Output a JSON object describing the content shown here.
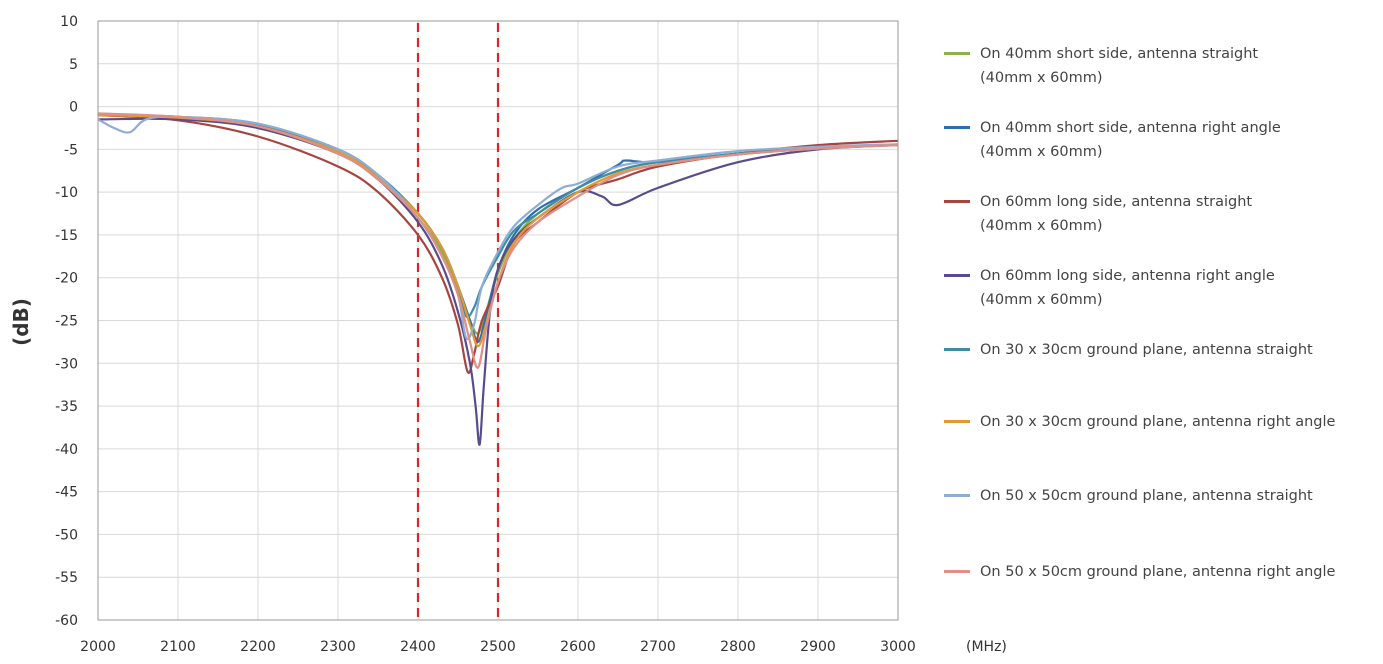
{
  "chart_data": {
    "type": "line",
    "xlabel": "(MHz)",
    "ylabel": "(dB)",
    "xlim": [
      2000,
      3000
    ],
    "ylim": [
      -60,
      10
    ],
    "xticks": [
      2000,
      2100,
      2200,
      2300,
      2400,
      2500,
      2600,
      2700,
      2800,
      2900,
      3000
    ],
    "yticks": [
      10,
      5,
      0,
      -5,
      -10,
      -15,
      -20,
      -25,
      -30,
      -35,
      -40,
      -45,
      -50,
      -55,
      -60
    ],
    "grid": true,
    "legend_position": "right",
    "reference_lines": [
      {
        "x": 2400,
        "color": "#d62728",
        "style": "dashed"
      },
      {
        "x": 2500,
        "color": "#d62728",
        "style": "dashed"
      }
    ],
    "series": [
      {
        "name": "On 40mm short side, antenna straight",
        "name_line2": "(40mm x 60mm)",
        "color": "#8db04a",
        "x": [
          2000,
          2100,
          2200,
          2300,
          2350,
          2400,
          2430,
          2450,
          2465,
          2475,
          2485,
          2500,
          2520,
          2550,
          2600,
          2650,
          2700,
          2800,
          2900,
          3000
        ],
        "y": [
          -1.0,
          -1.3,
          -2.5,
          -5.5,
          -8.5,
          -13.0,
          -17.0,
          -21.5,
          -25.0,
          -26.5,
          -24.0,
          -19.5,
          -15.5,
          -12.5,
          -9.5,
          -7.5,
          -6.5,
          -5.5,
          -4.8,
          -4.5
        ]
      },
      {
        "name": "On 40mm short side, antenna right angle",
        "name_line2": "(40mm x 60mm)",
        "color": "#2e6fb0",
        "x": [
          2000,
          2100,
          2200,
          2300,
          2350,
          2400,
          2430,
          2450,
          2465,
          2475,
          2485,
          2500,
          2520,
          2550,
          2600,
          2650,
          2660,
          2700,
          2800,
          2900,
          3000
        ],
        "y": [
          -1.0,
          -1.2,
          -2.2,
          -5.0,
          -8.0,
          -12.5,
          -16.5,
          -21.0,
          -25.0,
          -27.5,
          -24.5,
          -19.0,
          -15.0,
          -12.0,
          -9.5,
          -6.8,
          -6.3,
          -6.5,
          -5.5,
          -4.8,
          -4.5
        ]
      },
      {
        "name": "On 60mm long side, antenna straight",
        "name_line2": "(40mm x 60mm)",
        "color": "#a84440",
        "x": [
          2000,
          2100,
          2200,
          2300,
          2350,
          2400,
          2430,
          2450,
          2462,
          2470,
          2480,
          2500,
          2520,
          2550,
          2600,
          2650,
          2700,
          2800,
          2900,
          3000
        ],
        "y": [
          -1.0,
          -1.6,
          -3.5,
          -7.0,
          -10.0,
          -15.0,
          -20.0,
          -25.5,
          -31.0,
          -29.0,
          -25.0,
          -21.0,
          -16.0,
          -13.5,
          -10.0,
          -8.5,
          -7.0,
          -5.5,
          -4.5,
          -4.0
        ]
      },
      {
        "name": "On 60mm long side, antenna right angle",
        "name_line2": "(40mm x 60mm)",
        "color": "#5a4c8c",
        "x": [
          2000,
          2100,
          2200,
          2300,
          2350,
          2400,
          2430,
          2450,
          2465,
          2472,
          2477,
          2482,
          2490,
          2500,
          2520,
          2550,
          2600,
          2630,
          2650,
          2700,
          2800,
          2900,
          3000
        ],
        "y": [
          -1.5,
          -1.5,
          -2.5,
          -5.5,
          -8.5,
          -13.5,
          -18.5,
          -24.0,
          -30.0,
          -35.0,
          -39.5,
          -33.0,
          -24.0,
          -19.0,
          -15.5,
          -13.0,
          -10.0,
          -10.5,
          -11.5,
          -9.5,
          -6.5,
          -5.0,
          -4.5
        ]
      },
      {
        "name": "On 30 x 30cm ground plane, antenna straight",
        "name_line2": "",
        "color": "#3b8ea5",
        "x": [
          2000,
          2100,
          2200,
          2300,
          2350,
          2400,
          2430,
          2450,
          2460,
          2470,
          2480,
          2500,
          2520,
          2550,
          2600,
          2650,
          2700,
          2800,
          2900,
          3000
        ],
        "y": [
          -1.0,
          -1.2,
          -2.0,
          -5.0,
          -8.0,
          -12.5,
          -16.5,
          -21.0,
          -24.5,
          -23.5,
          -21.0,
          -17.5,
          -14.5,
          -12.5,
          -9.5,
          -7.5,
          -6.5,
          -5.5,
          -4.8,
          -4.5
        ]
      },
      {
        "name": "On 30 x 30cm ground plane, antenna right angle",
        "name_line2": "",
        "color": "#e09a2e",
        "x": [
          2000,
          2100,
          2200,
          2300,
          2350,
          2400,
          2430,
          2450,
          2465,
          2475,
          2485,
          2500,
          2520,
          2550,
          2600,
          2650,
          2700,
          2800,
          2900,
          3000
        ],
        "y": [
          -1.0,
          -1.3,
          -2.3,
          -5.3,
          -8.3,
          -12.5,
          -16.5,
          -21.0,
          -25.5,
          -28.0,
          -25.5,
          -20.5,
          -16.0,
          -13.0,
          -10.0,
          -7.8,
          -6.8,
          -5.6,
          -4.9,
          -4.5
        ]
      },
      {
        "name": "On 50 x 50cm ground plane, antenna straight",
        "name_line2": "",
        "color": "#8fadd4",
        "x": [
          2000,
          2020,
          2040,
          2060,
          2100,
          2200,
          2300,
          2350,
          2400,
          2430,
          2450,
          2460,
          2470,
          2480,
          2500,
          2520,
          2550,
          2580,
          2600,
          2650,
          2700,
          2800,
          2900,
          3000
        ],
        "y": [
          -1.5,
          -2.5,
          -3.0,
          -1.5,
          -1.2,
          -2.0,
          -5.0,
          -8.0,
          -13.0,
          -17.5,
          -22.0,
          -27.0,
          -25.5,
          -21.0,
          -17.0,
          -14.0,
          -11.5,
          -9.5,
          -9.0,
          -7.0,
          -6.3,
          -5.2,
          -4.7,
          -4.4
        ]
      },
      {
        "name": "On 50 x 50cm ground plane, antenna right angle",
        "name_line2": "",
        "color": "#e08f86",
        "x": [
          2000,
          2100,
          2200,
          2300,
          2350,
          2400,
          2430,
          2450,
          2465,
          2475,
          2485,
          2500,
          2520,
          2550,
          2600,
          2650,
          2700,
          2800,
          2900,
          3000
        ],
        "y": [
          -0.8,
          -1.2,
          -2.3,
          -5.5,
          -8.5,
          -13.0,
          -17.5,
          -22.0,
          -27.5,
          -30.5,
          -26.0,
          -20.5,
          -16.5,
          -13.5,
          -10.5,
          -8.0,
          -6.8,
          -5.6,
          -4.9,
          -4.5
        ]
      }
    ]
  }
}
